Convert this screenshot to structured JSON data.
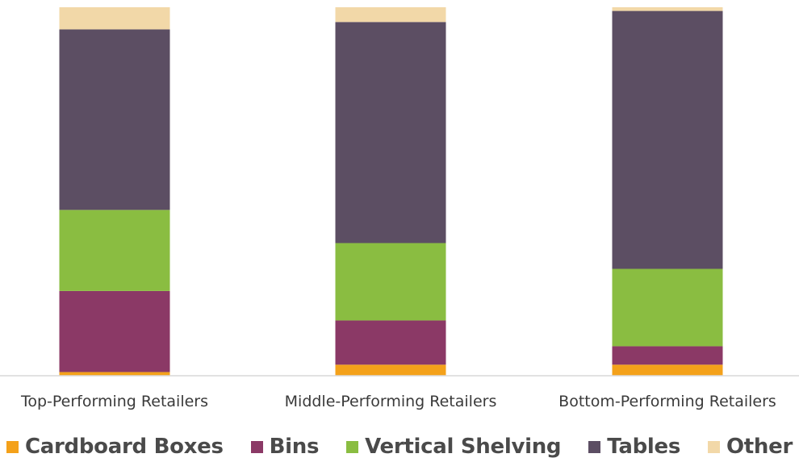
{
  "chart_data": {
    "type": "bar",
    "stacked": true,
    "orientation": "vertical",
    "categories": [
      "Top-Performing Retailers",
      "Middle-Performing Retailers",
      "Bottom-Performing Retailers"
    ],
    "series": [
      {
        "name": "Cardboard Boxes",
        "color": "#f4a11a",
        "values": [
          1,
          3,
          3
        ]
      },
      {
        "name": "Bins",
        "color": "#8b3966",
        "values": [
          22,
          12,
          5
        ]
      },
      {
        "name": "Vertical Shelving",
        "color": "#8abd41",
        "values": [
          22,
          21,
          21
        ]
      },
      {
        "name": "Tables",
        "color": "#5c4e63",
        "values": [
          49,
          60,
          70
        ]
      },
      {
        "name": "Other",
        "color": "#f2d8a8",
        "values": [
          6,
          4,
          1
        ]
      }
    ],
    "ylim": [
      0,
      100
    ],
    "grid": false,
    "legend_position": "bottom",
    "title": "",
    "xlabel": "",
    "ylabel": ""
  }
}
